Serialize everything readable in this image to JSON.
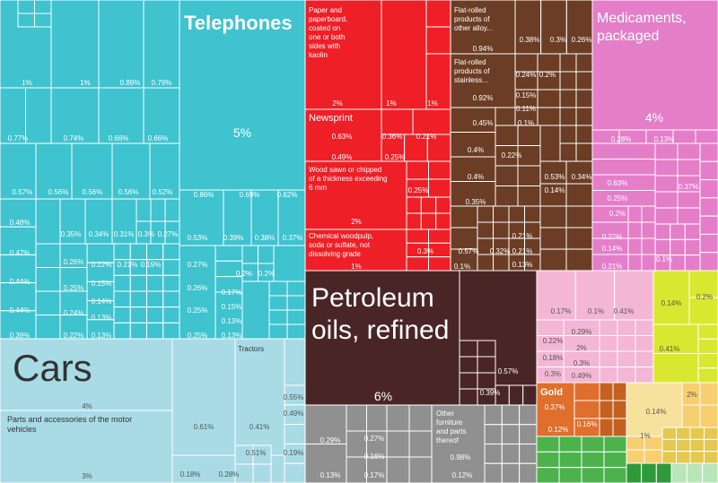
{
  "chart_data": {
    "type": "treemap",
    "colors": {
      "machinery": "#3ec3cf",
      "transportation": "#a8dbe6",
      "paper_wood": "#ee1f26",
      "metals": "#6b3d24",
      "chemicals": "#e47ec8",
      "mineral_products": "#4a2526",
      "misc": "#909090",
      "plastics": "#f4b6d5",
      "precious_metals": "#e06e2c",
      "vegetable_products": "#d8e830",
      "foodstuffs": "#f8cf70",
      "animal_products": "#4cb34c",
      "textiles": "#b8e6b8",
      "stone": "#f6e29d"
    },
    "tiles": [
      {
        "label": "Telephones",
        "value": "5%",
        "group": "machinery"
      },
      {
        "label": "Cars",
        "value": "4%",
        "group": "transportation"
      },
      {
        "label": "Parts and accessories of the motor vehicles",
        "value": "3%",
        "group": "transportation"
      },
      {
        "label": "Tractors",
        "value": "",
        "group": "transportation"
      },
      {
        "label": "Paper and paperboard, coated on one or both sides with kaolin",
        "value": "2%",
        "group": "paper_wood"
      },
      {
        "label": "Newsprint",
        "value": "0.63%",
        "group": "paper_wood"
      },
      {
        "label": "Wood sawn or chipped of a thickness exceeding 6 mm",
        "value": "2%",
        "group": "paper_wood"
      },
      {
        "label": "Chemical woodpulp, soda or sulfate, not dissolving grade",
        "value": "1%",
        "group": "paper_wood"
      },
      {
        "label": "Flat-rolled products of other alloy...",
        "value": "0.94%",
        "group": "metals"
      },
      {
        "label": "Flat-rolled products of stainless...",
        "value": "0.92%",
        "group": "metals"
      },
      {
        "label": "Medicaments, packaged",
        "value": "4%",
        "group": "chemicals"
      },
      {
        "label": "Petroleum oils, refined",
        "value": "6%",
        "group": "mineral_products"
      },
      {
        "label": "Other furniture and parts thereof",
        "value": "0.98%",
        "group": "misc"
      },
      {
        "label": "Gold",
        "value": "0.37%",
        "group": "precious_metals"
      }
    ],
    "small_labels": [
      "1%",
      "1%",
      "0.89%",
      "0.79%",
      "0.77%",
      "0.74%",
      "0.66%",
      "0.66%",
      "0.57%",
      "0.56%",
      "0.56%",
      "0.56%",
      "0.52%",
      "0.86%",
      "0.69%",
      "0.62%",
      "0.48%",
      "0.35%",
      "0.34%",
      "0.31%",
      "0.3%",
      "0.27%",
      "0.53%",
      "0.39%",
      "0.38%",
      "0.37%",
      "0.47%",
      "0.26%",
      "0.22%",
      "0.21%",
      "0.19%",
      "0.27%",
      "0.2%",
      "0.2%",
      "0.44%",
      "0.25%",
      "0.15%",
      "0.26%",
      "0.17%",
      "0.14%",
      "0.15%",
      "0.44%",
      "0.24%",
      "0.13%",
      "0.25%",
      "0.13%",
      "0.39%",
      "0.22%",
      "0.13%",
      "0.25%",
      "0.13%",
      "2%",
      "1%",
      "1%",
      "0.36%",
      "0.21%",
      "0.49%",
      "0.25%",
      "0.25%",
      "0.3%",
      "0.38%",
      "0.3%",
      "0.26%",
      "0.24%",
      "0.2%",
      "0.15%",
      "0.11%",
      "0.1%",
      "0.45%",
      "0.4%",
      "0.22%",
      "0.4%",
      "0.53%",
      "0.34%",
      "0.14%",
      "0.35%",
      "0.21%",
      "0.21%",
      "0.57%",
      "0.32%",
      "0.13%",
      "0.1%",
      "0.28%",
      "0.13%",
      "0.63%",
      "0.37%",
      "0.25%",
      "0.2%",
      "0.27%",
      "0.14%",
      "0.1%",
      "0.21%",
      "0.57%",
      "0.39%",
      "0.29%",
      "0.27%",
      "0.16%",
      "0.13%",
      "0.17%",
      "0.12%",
      "0.17%",
      "0.1%",
      "0.41%",
      "0.22%",
      "0.29%",
      "2%",
      "0.18%",
      "0.3%",
      "0.3%",
      "0.49%",
      "0.14%",
      "0.2%",
      "0.41%",
      "0.12%",
      "0.16%",
      "0.14%",
      "2%",
      "1%",
      "0.55%",
      "0.49%",
      "0.61%",
      "0.41%",
      "0.19%",
      "0.51%",
      "0.18%",
      "0.28%"
    ]
  }
}
